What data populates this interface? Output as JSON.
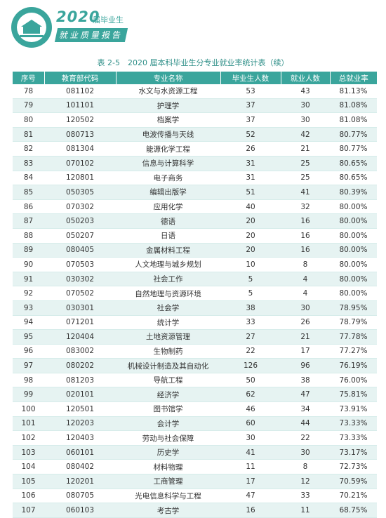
{
  "header": {
    "year": "2020",
    "subtitle": "届毕业生",
    "title": "就业质量报告"
  },
  "caption": "表 2-5　2020 届本科毕业生分专业就业率统计表（续）",
  "table": {
    "columns": [
      "序号",
      "教育部代码",
      "专业名称",
      "毕业生人数",
      "就业人数",
      "总就业率"
    ],
    "rows": [
      [
        "78",
        "081102",
        "水文与水资源工程",
        "53",
        "43",
        "81.13%"
      ],
      [
        "79",
        "101101",
        "护理学",
        "37",
        "30",
        "81.08%"
      ],
      [
        "80",
        "120502",
        "档案学",
        "37",
        "30",
        "81.08%"
      ],
      [
        "81",
        "080713",
        "电波传播与天线",
        "52",
        "42",
        "80.77%"
      ],
      [
        "82",
        "081304",
        "能源化学工程",
        "26",
        "21",
        "80.77%"
      ],
      [
        "83",
        "070102",
        "信息与计算科学",
        "31",
        "25",
        "80.65%"
      ],
      [
        "84",
        "120801",
        "电子商务",
        "31",
        "25",
        "80.65%"
      ],
      [
        "85",
        "050305",
        "编辑出版学",
        "51",
        "41",
        "80.39%"
      ],
      [
        "86",
        "070302",
        "应用化学",
        "40",
        "32",
        "80.00%"
      ],
      [
        "87",
        "050203",
        "德语",
        "20",
        "16",
        "80.00%"
      ],
      [
        "88",
        "050207",
        "日语",
        "20",
        "16",
        "80.00%"
      ],
      [
        "89",
        "080405",
        "金属材料工程",
        "20",
        "16",
        "80.00%"
      ],
      [
        "90",
        "070503",
        "人文地理与城乡规划",
        "10",
        "8",
        "80.00%"
      ],
      [
        "91",
        "030302",
        "社会工作",
        "5",
        "4",
        "80.00%"
      ],
      [
        "92",
        "070502",
        "自然地理与资源环境",
        "5",
        "4",
        "80.00%"
      ],
      [
        "93",
        "030301",
        "社会学",
        "38",
        "30",
        "78.95%"
      ],
      [
        "94",
        "071201",
        "统计学",
        "33",
        "26",
        "78.79%"
      ],
      [
        "95",
        "120404",
        "土地资源管理",
        "27",
        "21",
        "77.78%"
      ],
      [
        "96",
        "083002",
        "生物制药",
        "22",
        "17",
        "77.27%"
      ],
      [
        "97",
        "080202",
        "机械设计制造及其自动化",
        "126",
        "96",
        "76.19%"
      ],
      [
        "98",
        "081203",
        "导航工程",
        "50",
        "38",
        "76.00%"
      ],
      [
        "99",
        "020101",
        "经济学",
        "62",
        "47",
        "75.81%"
      ],
      [
        "100",
        "120501",
        "图书馆学",
        "46",
        "34",
        "73.91%"
      ],
      [
        "101",
        "120203",
        "会计学",
        "60",
        "44",
        "73.33%"
      ],
      [
        "102",
        "120403",
        "劳动与社会保障",
        "30",
        "22",
        "73.33%"
      ],
      [
        "103",
        "060101",
        "历史学",
        "41",
        "30",
        "73.17%"
      ],
      [
        "104",
        "080402",
        "材料物理",
        "11",
        "8",
        "72.73%"
      ],
      [
        "105",
        "120201",
        "工商管理",
        "17",
        "12",
        "70.59%"
      ],
      [
        "106",
        "080705",
        "光电信息科学与工程",
        "47",
        "33",
        "70.21%"
      ],
      [
        "107",
        "060103",
        "考古学",
        "16",
        "11",
        "68.75%"
      ]
    ]
  }
}
